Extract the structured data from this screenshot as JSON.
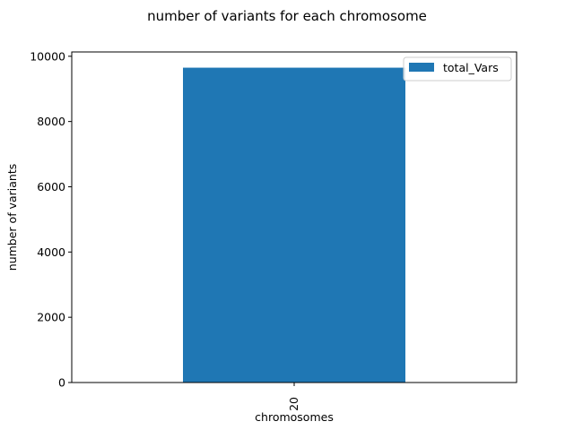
{
  "chart_data": {
    "type": "bar",
    "title": "number of variants for each chromosome",
    "xlabel": "chromosomes",
    "ylabel": "number of variants",
    "categories": [
      "20"
    ],
    "series": [
      {
        "name": "total_Vars",
        "values": [
          9650
        ],
        "color": "#1f77b4"
      }
    ],
    "ylim": [
      0,
      10132
    ],
    "yticks": [
      0,
      2000,
      4000,
      6000,
      8000,
      10000
    ],
    "xtick_rotation": "vertical",
    "grid": false,
    "legend": "upper-right"
  }
}
